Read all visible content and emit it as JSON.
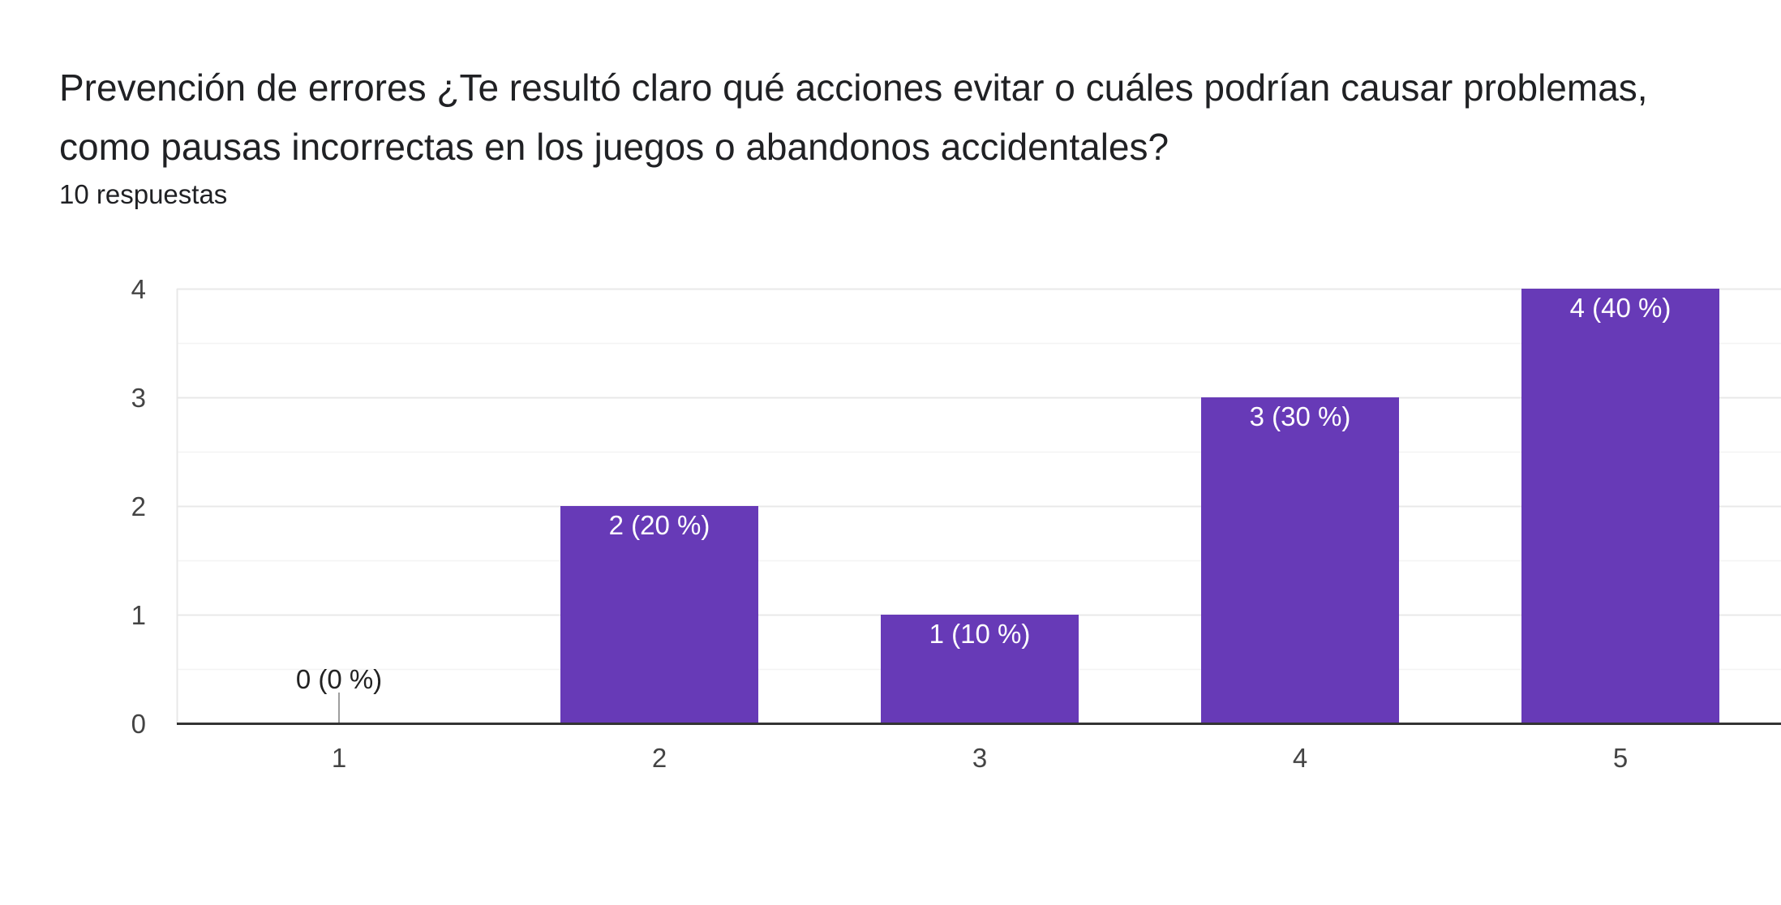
{
  "header": {
    "title": "Prevención de errores ¿Te resultó claro qué acciones evitar o cuáles podrían causar problemas, como pausas incorrectas en los juegos o abandonos accidentales?",
    "responses": "10 respuestas"
  },
  "colors": {
    "bar": "#673ab7",
    "grid": "#e8e8e8",
    "axis": "#333333",
    "zero_marker": "#9e9e9e"
  },
  "chart_data": {
    "type": "bar",
    "categories": [
      "1",
      "2",
      "3",
      "4",
      "5"
    ],
    "values": [
      0,
      2,
      1,
      3,
      4
    ],
    "data_labels": [
      "0 (0 %)",
      "2 (20 %)",
      "1 (10 %)",
      "3 (30 %)",
      "4 (40 %)"
    ],
    "title": "Prevención de errores ¿Te resultó claro qué acciones evitar o cuáles podrían causar problemas, como pausas incorrectas en los juegos o abandonos accidentales?",
    "xlabel": "",
    "ylabel": "",
    "ylim": [
      0,
      4
    ],
    "yticks": [
      0,
      1,
      2,
      3,
      4
    ],
    "grid": true,
    "legend": "none"
  }
}
